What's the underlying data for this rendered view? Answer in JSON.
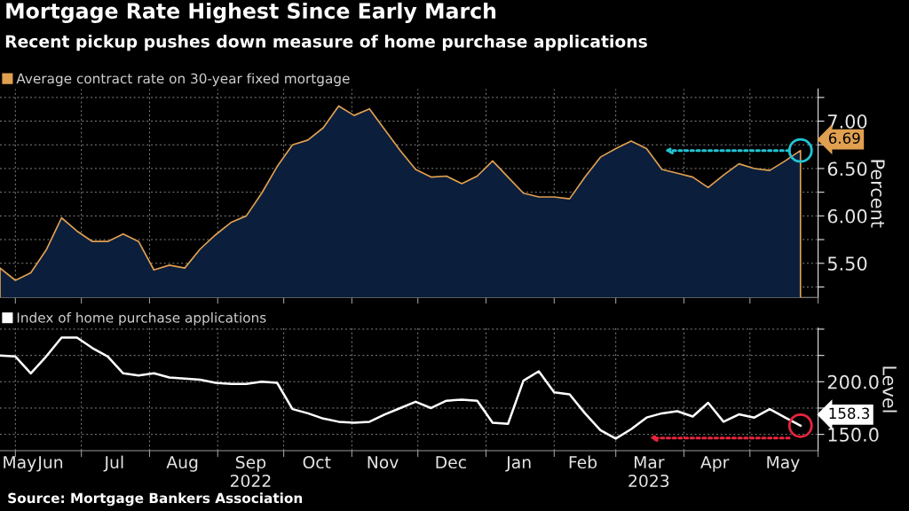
{
  "chart_data": [
    {
      "type": "area",
      "title": "Mortgage Rate Highest Since Early March",
      "subtitle": "Recent pickup pushes down measure of home purchase applications",
      "ylabel": "Percent",
      "x": [
        "2022-05-25",
        "2022-06-01",
        "2022-06-08",
        "2022-06-15",
        "2022-06-22",
        "2022-06-29",
        "2022-07-06",
        "2022-07-13",
        "2022-07-20",
        "2022-07-27",
        "2022-08-03",
        "2022-08-10",
        "2022-08-17",
        "2022-08-24",
        "2022-08-31",
        "2022-09-07",
        "2022-09-14",
        "2022-09-21",
        "2022-09-28",
        "2022-10-05",
        "2022-10-12",
        "2022-10-19",
        "2022-10-26",
        "2022-11-02",
        "2022-11-09",
        "2022-11-16",
        "2022-11-23",
        "2022-11-30",
        "2022-12-07",
        "2022-12-14",
        "2022-12-21",
        "2022-12-28",
        "2023-01-04",
        "2023-01-11",
        "2023-01-18",
        "2023-01-25",
        "2023-02-01",
        "2023-02-08",
        "2023-02-15",
        "2023-02-22",
        "2023-03-01",
        "2023-03-08",
        "2023-03-15",
        "2023-03-22",
        "2023-03-29",
        "2023-04-05",
        "2023-04-12",
        "2023-04-19",
        "2023-04-26",
        "2023-05-03",
        "2023-05-10",
        "2023-05-17",
        "2023-05-24"
      ],
      "series": [
        {
          "name": "Average contract rate on 30-year fixed mortgage",
          "color": "#e0a050",
          "values": [
            5.45,
            5.32,
            5.4,
            5.64,
            5.98,
            5.84,
            5.73,
            5.73,
            5.81,
            5.73,
            5.43,
            5.48,
            5.45,
            5.65,
            5.8,
            5.93,
            6.0,
            6.24,
            6.52,
            6.75,
            6.8,
            6.93,
            7.16,
            7.06,
            7.13,
            6.91,
            6.69,
            6.49,
            6.41,
            6.42,
            6.34,
            6.42,
            6.58,
            6.41,
            6.24,
            6.2,
            6.2,
            6.18,
            6.41,
            6.62,
            6.71,
            6.79,
            6.71,
            6.49,
            6.45,
            6.41,
            6.3,
            6.43,
            6.55,
            6.5,
            6.48,
            6.58,
            6.69
          ],
          "value_labels": [
            null,
            null,
            null,
            null,
            null,
            null,
            null,
            null,
            null,
            null,
            null,
            null,
            null,
            null,
            null,
            null,
            null,
            null,
            null,
            null,
            null,
            null,
            null,
            null,
            null,
            null,
            null,
            null,
            null,
            null,
            null,
            null,
            null,
            null,
            null,
            null,
            null,
            null,
            null,
            null,
            null,
            null,
            null,
            null,
            null,
            null,
            null,
            null,
            null,
            null,
            null,
            null,
            "6.69"
          ]
        }
      ],
      "xlim": [
        "2022-05-25",
        "2023-06-01"
      ],
      "ylim": [
        5.14,
        7.34
      ],
      "yticks": [
        {
          "value": 5.25,
          "label": null
        },
        {
          "value": 5.5,
          "label": "5.50"
        },
        {
          "value": 5.75,
          "label": null
        },
        {
          "value": 6.0,
          "label": "6.00"
        },
        {
          "value": 6.25,
          "label": null
        },
        {
          "value": 6.5,
          "label": "6.50"
        },
        {
          "value": 6.75,
          "label": null
        },
        {
          "value": 7.0,
          "label": "7.00"
        },
        {
          "value": 7.25,
          "label": null
        }
      ],
      "xticks": [
        {
          "value": "2022-06-01",
          "label": null
        },
        {
          "value": "2022-07-01",
          "label": null
        },
        {
          "value": "2022-08-01",
          "label": null
        },
        {
          "value": "2022-09-01",
          "label": null
        },
        {
          "value": "2022-10-01",
          "label": null
        },
        {
          "value": "2022-11-01",
          "label": null
        },
        {
          "value": "2022-12-01",
          "label": null
        },
        {
          "value": "2023-01-01",
          "label": null
        },
        {
          "value": "2023-02-01",
          "label": null
        },
        {
          "value": "2023-03-01",
          "label": null
        },
        {
          "value": "2023-04-01",
          "label": null
        },
        {
          "value": "2023-05-01",
          "label": null
        },
        {
          "value": "2023-06-01",
          "label": null
        }
      ],
      "tick_labels": "y",
      "grid": true,
      "legend": "top left"
    },
    {
      "type": "line",
      "ylabel": "Level",
      "x": [
        "2022-05-25",
        "2022-06-01",
        "2022-06-08",
        "2022-06-15",
        "2022-06-22",
        "2022-06-29",
        "2022-07-06",
        "2022-07-13",
        "2022-07-20",
        "2022-07-27",
        "2022-08-03",
        "2022-08-10",
        "2022-08-17",
        "2022-08-24",
        "2022-08-31",
        "2022-09-07",
        "2022-09-14",
        "2022-09-21",
        "2022-09-28",
        "2022-10-05",
        "2022-10-12",
        "2022-10-19",
        "2022-10-26",
        "2022-11-02",
        "2022-11-09",
        "2022-11-16",
        "2022-11-23",
        "2022-11-30",
        "2022-12-07",
        "2022-12-14",
        "2022-12-21",
        "2022-12-28",
        "2023-01-04",
        "2023-01-11",
        "2023-01-18",
        "2023-01-25",
        "2023-02-01",
        "2023-02-08",
        "2023-02-15",
        "2023-02-22",
        "2023-03-01",
        "2023-03-08",
        "2023-03-15",
        "2023-03-22",
        "2023-03-29",
        "2023-04-05",
        "2023-04-12",
        "2023-04-19",
        "2023-04-26",
        "2023-05-03",
        "2023-05-10",
        "2023-05-17",
        "2023-05-24"
      ],
      "series": [
        {
          "name": "Index of home purchase applications",
          "color": "#ffffff",
          "values": [
            225,
            224,
            208,
            224,
            242,
            242,
            232,
            224,
            208,
            206,
            208,
            204,
            203,
            202,
            199,
            198,
            198,
            200,
            199,
            174,
            170,
            165,
            162,
            161,
            162,
            169,
            175,
            181,
            175,
            182,
            183,
            182,
            161,
            160,
            201,
            210,
            190,
            188,
            170,
            154,
            146,
            155,
            166,
            170,
            172,
            167,
            180,
            162,
            169,
            166,
            174,
            166,
            158.3
          ],
          "value_labels": [
            null,
            null,
            null,
            null,
            null,
            null,
            null,
            null,
            null,
            null,
            null,
            null,
            null,
            null,
            null,
            null,
            null,
            null,
            null,
            null,
            null,
            null,
            null,
            null,
            null,
            null,
            null,
            null,
            null,
            null,
            null,
            null,
            null,
            null,
            null,
            null,
            null,
            null,
            null,
            null,
            null,
            null,
            null,
            null,
            null,
            null,
            null,
            null,
            null,
            null,
            null,
            null,
            "158.3"
          ]
        }
      ],
      "xlim": [
        "2022-05-25",
        "2023-06-01"
      ],
      "ylim": [
        134.5,
        251
      ],
      "yticks": [
        {
          "value": 150,
          "label": "150.0"
        },
        {
          "value": 175,
          "label": null
        },
        {
          "value": 200,
          "label": "200.0"
        },
        {
          "value": 225,
          "label": null
        },
        {
          "value": 250,
          "label": null
        }
      ],
      "xticks": [
        {
          "value": "2022-06-01",
          "label": null
        },
        {
          "value": "2022-07-01",
          "label": null
        },
        {
          "value": "2022-08-01",
          "label": null
        },
        {
          "value": "2022-09-01",
          "label": null
        },
        {
          "value": "2022-10-01",
          "label": null
        },
        {
          "value": "2022-11-01",
          "label": null
        },
        {
          "value": "2022-12-01",
          "label": null
        },
        {
          "value": "2023-01-01",
          "label": null
        },
        {
          "value": "2023-02-01",
          "label": null
        },
        {
          "value": "2023-03-01",
          "label": null
        },
        {
          "value": "2023-04-01",
          "label": null
        },
        {
          "value": "2023-05-01",
          "label": null
        },
        {
          "value": "2023-06-01",
          "label": null
        },
        {
          "value": "2022-05-26",
          "label": "May"
        },
        {
          "value": "2022-06-17",
          "label": "Jun"
        },
        {
          "value": "2022-07-16",
          "label": "Jul"
        },
        {
          "value": "2022-08-16",
          "label": "Aug"
        },
        {
          "value": "2022-09-16",
          "label": "Sep\n2022"
        },
        {
          "value": "2022-10-16",
          "label": "Oct"
        },
        {
          "value": "2022-11-15",
          "label": "Nov"
        },
        {
          "value": "2022-12-16",
          "label": "Dec"
        },
        {
          "value": "2023-01-16",
          "label": "Jan"
        },
        {
          "value": "2023-02-14",
          "label": "Feb"
        },
        {
          "value": "2023-03-16",
          "label": "Mar\n2023"
        },
        {
          "value": "2023-04-15",
          "label": "Apr"
        },
        {
          "value": "2023-05-16",
          "label": "May"
        }
      ],
      "grid": true,
      "legend": "top left",
      "annotations": [
        "Source: Mortgage Bankers Association"
      ]
    }
  ]
}
